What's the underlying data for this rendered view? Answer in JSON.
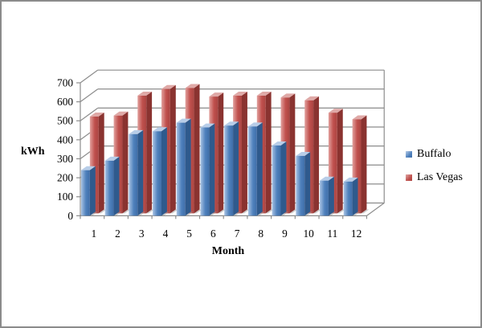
{
  "window": {
    "background": "#ffffff",
    "frame_border_color": "#8b8b8b"
  },
  "chart_data": {
    "type": "bar",
    "variant": "3d-clustered-column",
    "title": "",
    "categories": [
      "1",
      "2",
      "3",
      "4",
      "5",
      "6",
      "7",
      "8",
      "9",
      "10",
      "11",
      "12"
    ],
    "series": [
      {
        "name": "Buffalo",
        "color": "#4f81bd",
        "color_light": "#a9c3e3",
        "color_dark": "#3f6ea8",
        "color_side": "#2f5a8d",
        "color_top": "#b8cde8",
        "values": [
          240,
          290,
          430,
          445,
          490,
          465,
          475,
          470,
          370,
          315,
          185,
          180
        ]
      },
      {
        "name": "Las Vegas",
        "color": "#c0504d",
        "color_light": "#e2a19e",
        "color_dark": "#aa4542",
        "color_side": "#8a3330",
        "color_top": "#dfa9a7",
        "values": [
          510,
          515,
          620,
          655,
          660,
          615,
          620,
          620,
          610,
          595,
          530,
          495
        ]
      }
    ],
    "xlabel": "Month",
    "ylabel": "kWh",
    "ylim": [
      0,
      700
    ],
    "ytick_step": 100,
    "grid": true,
    "gridline_color": "#8c8c8c",
    "legend_position": "right",
    "text_color": "#000000"
  }
}
